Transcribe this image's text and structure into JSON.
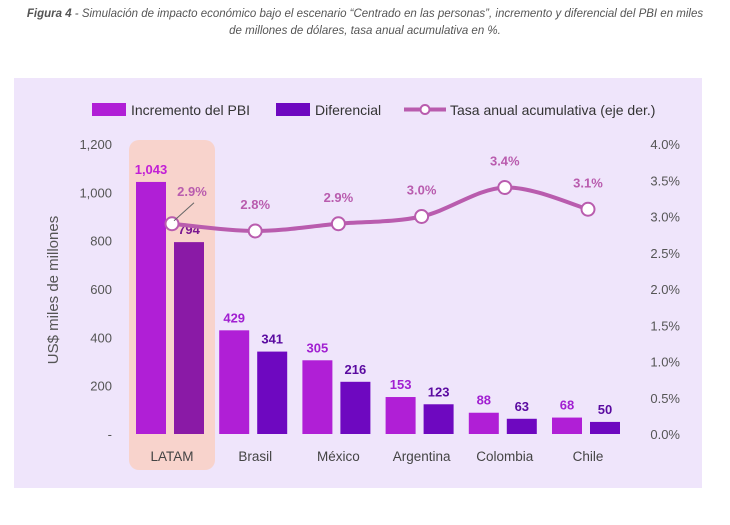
{
  "caption": {
    "label": "Figura 4",
    "text": " - Simulación de impacto económico bajo el escenario “Centrado en las personas”, incremento y diferencial del PBI en miles de millones de dólares, tasa anual acumulativa en %."
  },
  "chart_data": {
    "type": "bar",
    "title": "",
    "categories": [
      "LATAM",
      "Brasil",
      "México",
      "Argentina",
      "Colombia",
      "Chile"
    ],
    "series": [
      {
        "name": "Incremento del PBI",
        "type": "bar",
        "color": "#b01fd6",
        "values": [
          1043,
          429,
          305,
          153,
          88,
          68
        ],
        "labels": [
          "1,043",
          "429",
          "305",
          "153",
          "88",
          "68"
        ]
      },
      {
        "name": "Diferencial",
        "type": "bar",
        "color": "#6e08c0",
        "values": [
          794,
          341,
          216,
          123,
          63,
          50
        ],
        "labels": [
          "794",
          "341",
          "216",
          "123",
          "63",
          "50"
        ]
      },
      {
        "name": "Tasa anual acumulativa (eje der.)",
        "type": "line",
        "axis": "right",
        "color": "#b95cae",
        "values": [
          2.9,
          2.8,
          2.9,
          3.0,
          3.4,
          3.1
        ],
        "labels": [
          "2.9%",
          "2.8%",
          "2.9%",
          "3.0%",
          "3.4%",
          "3.1%"
        ]
      }
    ],
    "ylabel": "US$ miles de millones",
    "ylim": [
      0,
      1200
    ],
    "yticks": [
      "-",
      "200",
      "400",
      "600",
      "800",
      "1,000",
      "1,200"
    ],
    "y2lim": [
      0,
      4
    ],
    "y2ticks": [
      "0.0%",
      "0.5%",
      "1.0%",
      "1.5%",
      "2.0%",
      "2.5%",
      "3.0%",
      "3.5%",
      "4.0%"
    ],
    "highlight": "LATAM",
    "legend_position": "top",
    "grid": false,
    "colors": {
      "panel": "#efe5fb",
      "highlight": "#f8d3cc",
      "latam_bar1": "#b01fd6",
      "latam_bar2": "#8a1aa6"
    }
  }
}
